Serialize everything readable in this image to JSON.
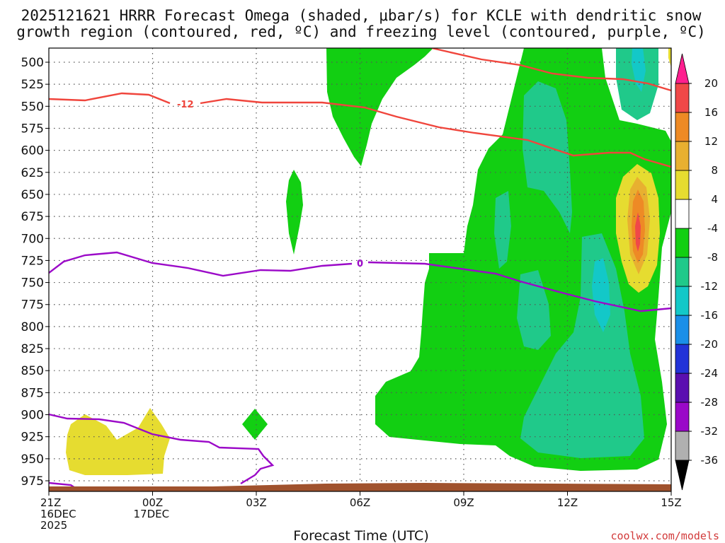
{
  "chart_data": {
    "type": "time-height",
    "title_line1": "2025121621 HRRR Forecast Omega (shaded, μbar/s) for KCLE with dendritic snow",
    "title_line2": "growth region (contoured, red, ºC) and freezing level (contoured, purple, ºC)",
    "xlabel": "Forecast Time (UTC)",
    "credit": "coolwx.com/models",
    "pressure_ticks": [
      500,
      525,
      550,
      575,
      600,
      625,
      650,
      675,
      700,
      725,
      750,
      775,
      800,
      825,
      850,
      875,
      900,
      925,
      950,
      975
    ],
    "pressure_labels": [
      "500",
      "525",
      "550",
      "575",
      "600",
      "625",
      "650",
      "675",
      "700",
      "725",
      "750",
      "775",
      "800",
      "825",
      "850",
      "875",
      "900",
      "925",
      "950",
      "975"
    ],
    "time_range_hours": [
      0,
      18
    ],
    "time_ticks": [
      {
        "hour": 0,
        "lines": [
          "21Z",
          "16DEC",
          "2025"
        ]
      },
      {
        "hour": 3,
        "lines": [
          "00Z",
          "17DEC"
        ]
      },
      {
        "hour": 6,
        "lines": [
          "03Z"
        ]
      },
      {
        "hour": 9,
        "lines": [
          "06Z"
        ]
      },
      {
        "hour": 12,
        "lines": [
          "09Z"
        ]
      },
      {
        "hour": 15,
        "lines": [
          "12Z"
        ]
      },
      {
        "hour": 18,
        "lines": [
          "15Z"
        ]
      }
    ],
    "colorbar": {
      "levels": [
        -36,
        -32,
        -28,
        -24,
        -20,
        -16,
        -12,
        -8,
        -4,
        4,
        8,
        12,
        16,
        20
      ],
      "labels": [
        "-36",
        "-32",
        "-28",
        "-24",
        "-20",
        "-16",
        "-12",
        "-8",
        "-4",
        "4",
        "8",
        "12",
        "16",
        "20"
      ],
      "colors": [
        "#b0b0b0",
        "#9a09c8",
        "#5a0fb0",
        "#2233d8",
        "#1a8fe8",
        "#13c8c8",
        "#20c98a",
        "#12cf12",
        "#ffffff",
        "#e6dc30",
        "#e8b030",
        "#ee8a25",
        "#f04848"
      ],
      "under_color": "#000000",
      "over_color": "#ff1f8f"
    },
    "contour_labels": {
      "dgz": "-12",
      "freezing": "0"
    },
    "colors": {
      "dgz": "#f0453c",
      "freezing": "#9b09c8",
      "ground": "#a0522d"
    }
  }
}
